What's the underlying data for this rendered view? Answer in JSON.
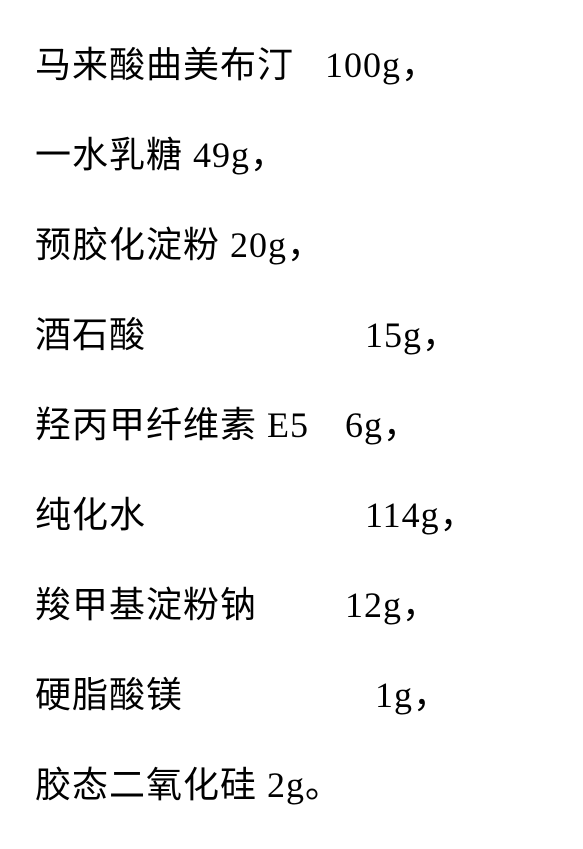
{
  "fontSize": 36,
  "textColor": "#000000",
  "backgroundColor": "#ffffff",
  "ingredients": [
    {
      "name": "马来酸曲美布汀",
      "amount": "100g，",
      "spaced": true
    },
    {
      "name": "一水乳糖 49g，",
      "amount": "",
      "spaced": false
    },
    {
      "name": "预胶化淀粉 20g，",
      "amount": "",
      "spaced": false
    },
    {
      "name": "酒石酸",
      "amount": "15g，",
      "spaced": true
    },
    {
      "name": "羟丙甲纤维素 E5",
      "amount": "6g，",
      "spaced": true
    },
    {
      "name": "纯化水",
      "amount": "114g，",
      "spaced": true
    },
    {
      "name": "羧甲基淀粉钠",
      "amount": "12g，",
      "spaced": true
    },
    {
      "name": "硬脂酸镁",
      "amount": "1g，",
      "spaced": true
    },
    {
      "name": "胶态二氧化硅 2g。",
      "amount": "",
      "spaced": false
    }
  ]
}
